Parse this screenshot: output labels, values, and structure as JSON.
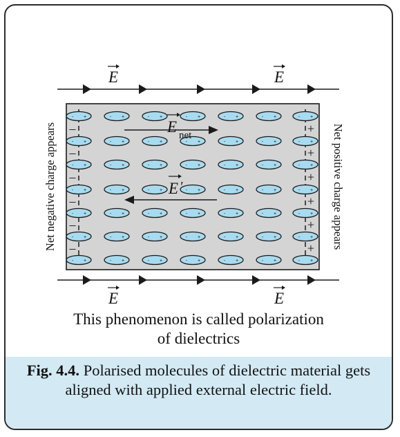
{
  "field_symbol": "E",
  "net_field_label": {
    "symbol": "E",
    "subscript": "net"
  },
  "induced_field_label": {
    "symbol": "E",
    "prime": "′"
  },
  "left_side_label": "Net negative charge appears",
  "right_side_label": "Net positive charge appears",
  "negative_sign": "–",
  "positive_sign": "+",
  "molecule_grid": {
    "rows": 7,
    "columns": 7
  },
  "statement_line1": "This phenomenon is called polarization",
  "statement_line2": "of dielectrics",
  "caption": {
    "figure_label": "Fig. 4.4.",
    "text": " Polarised molecules of dielectric material gets aligned with applied external electric field."
  },
  "colors": {
    "slab_fill": "#d4d4d4",
    "molecule_fill": "#a9dbf0",
    "caption_background": "#d3eaf4",
    "line": "#1a1a1a"
  }
}
